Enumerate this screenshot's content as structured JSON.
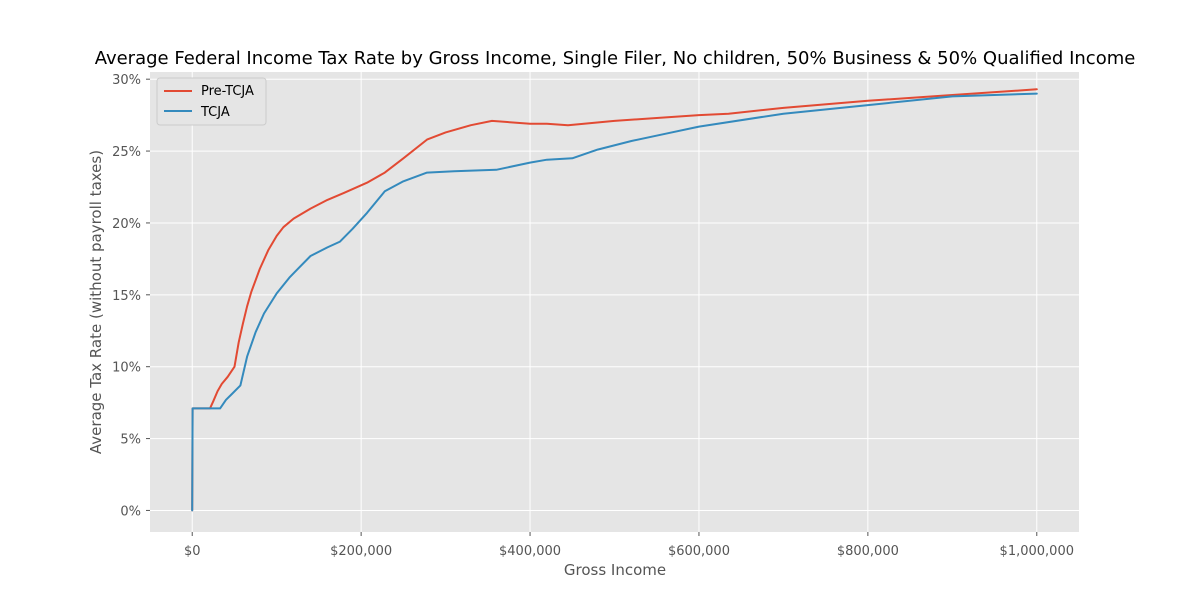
{
  "chart_data": {
    "type": "line",
    "title": "Average Federal Income Tax Rate by Gross Income, Single Filer, No children, 50% Business & 50% Qualified Income",
    "xlabel": "Gross Income",
    "ylabel": "Average Tax Rate (without payroll taxes)",
    "xlim": [
      -50000,
      1050000
    ],
    "ylim": [
      -0.015,
      0.305
    ],
    "xticks": [
      {
        "value": 0,
        "label": "$0"
      },
      {
        "value": 200000,
        "label": "$200,000"
      },
      {
        "value": 400000,
        "label": "$400,000"
      },
      {
        "value": 600000,
        "label": "$600,000"
      },
      {
        "value": 800000,
        "label": "$800,000"
      },
      {
        "value": 1000000,
        "label": "$1,000,000"
      }
    ],
    "yticks": [
      {
        "value": 0.0,
        "label": "0%"
      },
      {
        "value": 0.05,
        "label": "5%"
      },
      {
        "value": 0.1,
        "label": "10%"
      },
      {
        "value": 0.15,
        "label": "15%"
      },
      {
        "value": 0.2,
        "label": "20%"
      },
      {
        "value": 0.25,
        "label": "25%"
      },
      {
        "value": 0.3,
        "label": "30%"
      }
    ],
    "grid": true,
    "legend_position": "top-left",
    "colors": {
      "background": "#e5e5e5",
      "grid": "#ffffff",
      "pre_tcja": "#e24a33",
      "tcja": "#348abd"
    },
    "series": [
      {
        "name": "Pre-TCJA",
        "color": "#e24a33",
        "points": [
          [
            0,
            0.0
          ],
          [
            500,
            0.071
          ],
          [
            21000,
            0.071
          ],
          [
            25000,
            0.076
          ],
          [
            30000,
            0.083
          ],
          [
            35000,
            0.088
          ],
          [
            42000,
            0.093
          ],
          [
            50000,
            0.1
          ],
          [
            55000,
            0.117
          ],
          [
            60000,
            0.13
          ],
          [
            65000,
            0.142
          ],
          [
            70000,
            0.152
          ],
          [
            80000,
            0.168
          ],
          [
            90000,
            0.181
          ],
          [
            100000,
            0.191
          ],
          [
            108000,
            0.197
          ],
          [
            120000,
            0.203
          ],
          [
            140000,
            0.21
          ],
          [
            160000,
            0.216
          ],
          [
            180000,
            0.221
          ],
          [
            207000,
            0.228
          ],
          [
            228000,
            0.235
          ],
          [
            250000,
            0.245
          ],
          [
            278000,
            0.258
          ],
          [
            300000,
            0.263
          ],
          [
            330000,
            0.268
          ],
          [
            355000,
            0.271
          ],
          [
            400000,
            0.269
          ],
          [
            420000,
            0.269
          ],
          [
            445000,
            0.268
          ],
          [
            500000,
            0.271
          ],
          [
            550000,
            0.273
          ],
          [
            600000,
            0.275
          ],
          [
            635000,
            0.276
          ],
          [
            700000,
            0.28
          ],
          [
            800000,
            0.285
          ],
          [
            900000,
            0.289
          ],
          [
            1000000,
            0.293
          ]
        ]
      },
      {
        "name": "TCJA",
        "color": "#348abd",
        "points": [
          [
            0,
            0.0
          ],
          [
            500,
            0.071
          ],
          [
            33000,
            0.071
          ],
          [
            40000,
            0.077
          ],
          [
            47000,
            0.081
          ],
          [
            57000,
            0.087
          ],
          [
            65000,
            0.107
          ],
          [
            75000,
            0.124
          ],
          [
            85000,
            0.137
          ],
          [
            100000,
            0.151
          ],
          [
            115000,
            0.162
          ],
          [
            125000,
            0.168
          ],
          [
            140000,
            0.177
          ],
          [
            160000,
            0.183
          ],
          [
            175000,
            0.187
          ],
          [
            190000,
            0.196
          ],
          [
            207000,
            0.207
          ],
          [
            228000,
            0.222
          ],
          [
            250000,
            0.229
          ],
          [
            278000,
            0.235
          ],
          [
            310000,
            0.236
          ],
          [
            360000,
            0.237
          ],
          [
            400000,
            0.242
          ],
          [
            420000,
            0.244
          ],
          [
            450000,
            0.245
          ],
          [
            480000,
            0.251
          ],
          [
            520000,
            0.257
          ],
          [
            560000,
            0.262
          ],
          [
            600000,
            0.267
          ],
          [
            700000,
            0.276
          ],
          [
            800000,
            0.282
          ],
          [
            900000,
            0.288
          ],
          [
            1000000,
            0.29
          ]
        ]
      }
    ]
  }
}
